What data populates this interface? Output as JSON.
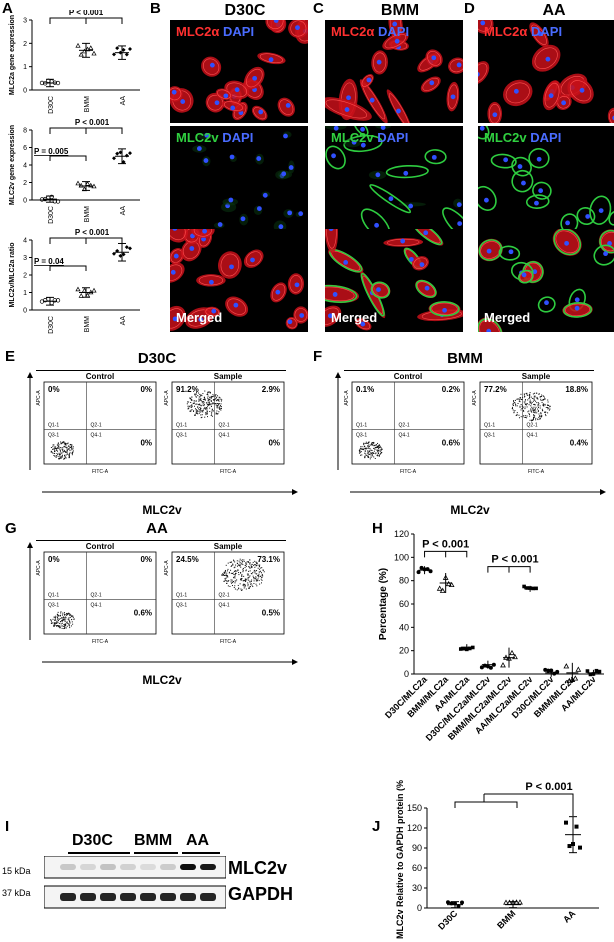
{
  "panels": {
    "A": "A",
    "B": "B",
    "C": "C",
    "D": "D",
    "E": "E",
    "F": "F",
    "G": "G",
    "H": "H",
    "I": "I",
    "J": "J"
  },
  "groups": {
    "d30c": "D30C",
    "bmm": "BMM",
    "aa": "AA"
  },
  "micro": {
    "mlc2a_label": "MLC2α",
    "mlc2v_label": "MLC2v",
    "dapi": "DAPI",
    "merged": "Merged"
  },
  "panelA": {
    "charts": [
      {
        "ylabel": "MLC2a gene expression",
        "sig": "P < 0.001",
        "ylim": [
          0,
          3
        ],
        "ticks": [
          "0",
          "1",
          "2",
          "3"
        ],
        "categories": [
          "D30C",
          "BMM",
          "AA"
        ],
        "means": [
          0.3,
          1.7,
          1.6
        ]
      },
      {
        "ylabel": "MLC2v gene expression",
        "sig1": "P = 0.005",
        "sig2": "P < 0.001",
        "ylim": [
          0,
          8
        ],
        "ticks": [
          "0",
          "2",
          "4",
          "6",
          "8"
        ],
        "categories": [
          "D30C",
          "BMM",
          "AA"
        ],
        "means": [
          0.1,
          1.6,
          5.0
        ]
      },
      {
        "ylabel": "MLC2v/MLC2a ratio",
        "sig1": "P = 0.04",
        "sig2": "P < 0.001",
        "ylim": [
          0,
          4
        ],
        "ticks": [
          "0",
          "1",
          "2",
          "3",
          "4"
        ],
        "categories": [
          "D30C",
          "BMM",
          "AA"
        ],
        "means": [
          0.5,
          1.0,
          3.3
        ]
      }
    ]
  },
  "flow": {
    "E": {
      "title": "D30C",
      "control": "Control",
      "sample": "Sample",
      "c": [
        "0%",
        "0%",
        "0%"
      ],
      "s": [
        "91.2%",
        "2.9%",
        "0%"
      ]
    },
    "F": {
      "title": "BMM",
      "control": "Control",
      "sample": "Sample",
      "c": [
        "0.1%",
        "0.2%",
        "0.6%"
      ],
      "s": [
        "77.2%",
        "18.8%",
        "0.4%"
      ]
    },
    "G": {
      "title": "AA",
      "control": "Control",
      "sample": "Sample",
      "c": [
        "0%",
        "0%",
        "0.6%"
      ],
      "s": [
        "24.5%",
        "73.1%",
        "0.5%"
      ]
    },
    "ylabel": "MLC2a",
    "xlabel": "MLC2v",
    "apc": "APC-A",
    "fitc": "FITC-A",
    "q1": "Q1-1",
    "q2": "Q2-1",
    "q3": "Q3-1",
    "q4": "Q4-1"
  },
  "chart_data": [
    {
      "type": "scatter",
      "title": "",
      "ylabel": "Percentage (%)",
      "ylim": [
        0,
        120
      ],
      "yticks": [
        "0",
        "20",
        "40",
        "60",
        "80",
        "100",
        "120"
      ],
      "categories": [
        "D30C/MLC2a",
        "BMM/MLC2a",
        "AA/MLC2a",
        "D30C/MLC2a/MLC2v",
        "BMM/MLC2a/MLC2v",
        "AA/MLC2a/MLC2v",
        "D30C/MLC2v",
        "BMM/MLC2v",
        "AA/MLC2v"
      ],
      "means": [
        89,
        78,
        23,
        8,
        14,
        73,
        1,
        1,
        1
      ],
      "sig1": "P < 0.001",
      "sig2": "P < 0.001"
    },
    {
      "type": "scatter",
      "ylabel": "MLC2v Relative to GAPDH protein (%)",
      "ylim": [
        0,
        150
      ],
      "yticks": [
        "0",
        "30",
        "60",
        "90",
        "120",
        "150"
      ],
      "categories": [
        "D30C",
        "BMM",
        "AA"
      ],
      "means": [
        5,
        5,
        110
      ],
      "sig": "P < 0.001"
    }
  ],
  "blot": {
    "groups": [
      "D30C",
      "BMM",
      "AA"
    ],
    "mw1": "15 kDa",
    "mw2": "37 kDa",
    "band1": "MLC2v",
    "band2": "GAPDH"
  }
}
